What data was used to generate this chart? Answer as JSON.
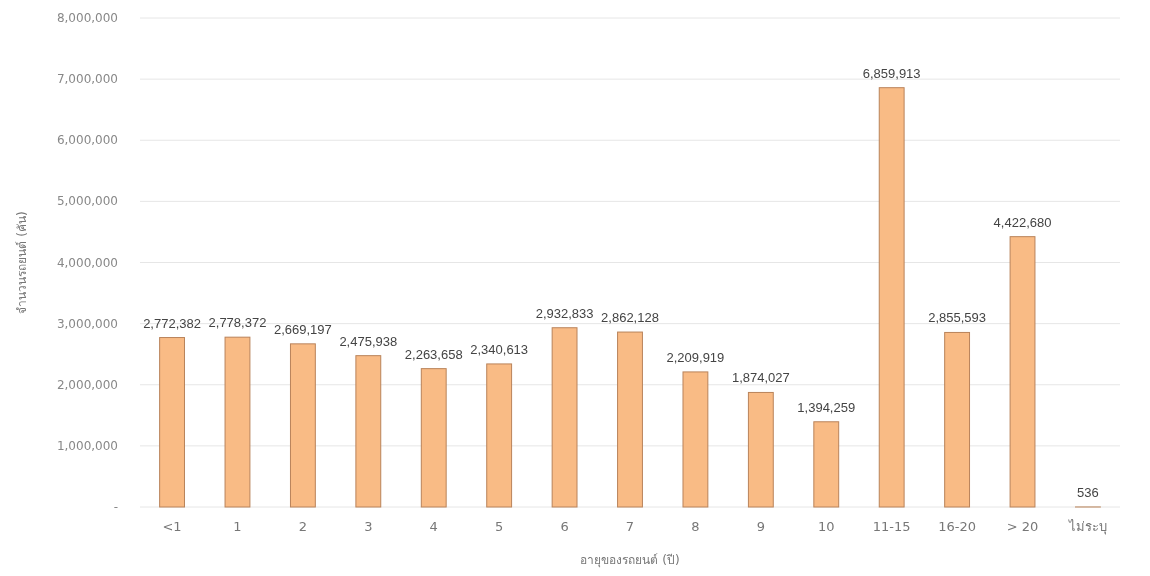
{
  "chart_data": {
    "type": "bar",
    "xlabel": "อายุของรถยนต์ (ปี)",
    "ylabel": "จำนวนรถยนต์ (คัน)",
    "categories": [
      "<1",
      "1",
      "2",
      "3",
      "4",
      "5",
      "6",
      "7",
      "8",
      "9",
      "10",
      "11-15",
      "16-20",
      "> 20",
      "ไม่ระบุ"
    ],
    "values": [
      2772382,
      2778372,
      2669197,
      2475938,
      2263658,
      2340613,
      2932833,
      2862128,
      2209919,
      1874027,
      1394259,
      6859913,
      2855593,
      4422680,
      536
    ],
    "color": "#f9bb85",
    "ylim": [
      0,
      8000000
    ],
    "yticks": [
      {
        "value": 0,
        "label": "-"
      },
      {
        "value": 1000000,
        "label": "1,000,000"
      },
      {
        "value": 2000000,
        "label": "2,000,000"
      },
      {
        "value": 3000000,
        "label": "3,000,000"
      },
      {
        "value": 4000000,
        "label": "4,000,000"
      },
      {
        "value": 5000000,
        "label": "5,000,000"
      },
      {
        "value": 6000000,
        "label": "6,000,000"
      },
      {
        "value": 7000000,
        "label": "7,000,000"
      },
      {
        "value": 8000000,
        "label": "8,000,000"
      }
    ],
    "value_labels": [
      "2,772,382",
      "2,778,372",
      "2,669,197",
      "2,475,938",
      "2,263,658",
      "2,340,613",
      "2,932,833",
      "2,862,128",
      "2,209,919",
      "1,874,027",
      "1,394,259",
      "6,859,913",
      "2,855,593",
      "4,422,680",
      "536"
    ],
    "grid": "y"
  }
}
